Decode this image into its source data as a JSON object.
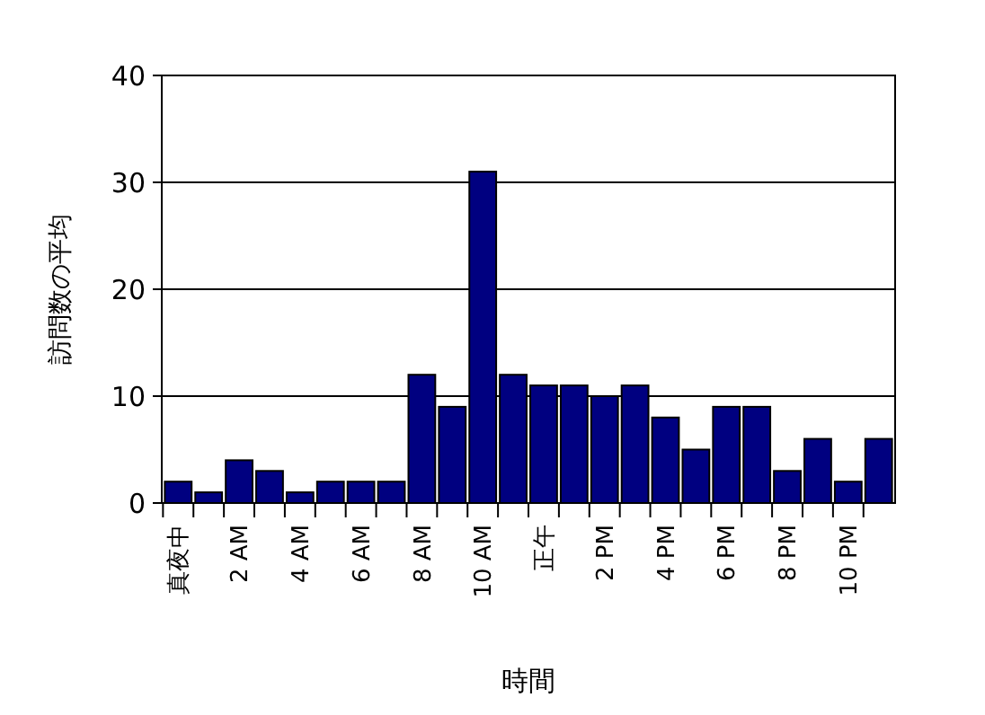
{
  "chart_data": {
    "type": "bar",
    "xlabel": "時間",
    "ylabel": "訪問数の平均",
    "categories": [
      "真夜中",
      null,
      "2 AM",
      null,
      "4 AM",
      null,
      "6 AM",
      null,
      "8 AM",
      null,
      "10 AM",
      null,
      "正午",
      null,
      "2 PM",
      null,
      "4 PM",
      null,
      "6 PM",
      null,
      "8 PM",
      null,
      "10 PM",
      null
    ],
    "values": [
      2,
      1,
      4,
      3,
      1,
      2,
      2,
      2,
      12,
      9,
      31,
      12,
      11,
      11,
      10,
      11,
      8,
      5,
      9,
      9,
      3,
      6,
      2,
      6
    ],
    "color": "#000080",
    "ylim": [
      0,
      40
    ],
    "yticks": [
      0,
      10,
      20,
      30,
      40
    ],
    "grid": "y"
  }
}
